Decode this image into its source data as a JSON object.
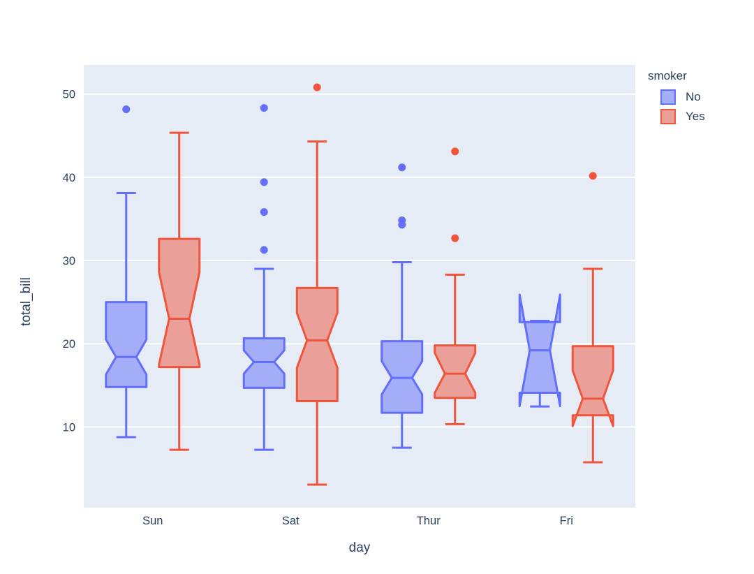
{
  "chart_data": {
    "type": "box",
    "notched": true,
    "title": "",
    "xlabel": "day",
    "ylabel": "total_bill",
    "categories": [
      "Sun",
      "Sat",
      "Thur",
      "Fri"
    ],
    "y_ticks": [
      10,
      20,
      30,
      40,
      50
    ],
    "ylim": [
      0.3,
      53.5
    ],
    "grid": true,
    "legend": {
      "title": "smoker",
      "position": "top-right",
      "entries": [
        {
          "label": "No",
          "color": "#636EFA",
          "fill": "#A4ADF8"
        },
        {
          "label": "Yes",
          "color": "#EF553B",
          "fill": "#EAA098"
        }
      ]
    },
    "series": [
      {
        "name": "No",
        "color": "#636EFA",
        "fill": "#A4ADF8",
        "boxes": [
          {
            "category": "Sun",
            "lower_fence": 8.77,
            "q1": 14.8,
            "median": 18.4,
            "q3": 25.0,
            "upper_fence": 38.1,
            "notch_lower": 16.3,
            "notch_upper": 20.5,
            "outliers": [
              48.17
            ]
          },
          {
            "category": "Sat",
            "lower_fence": 7.25,
            "q1": 14.7,
            "median": 17.8,
            "q3": 20.65,
            "upper_fence": 29.0,
            "notch_lower": 16.4,
            "notch_upper": 19.2,
            "outliers": [
              31.27,
              35.83,
              39.42,
              48.33
            ]
          },
          {
            "category": "Thur",
            "lower_fence": 7.51,
            "q1": 11.7,
            "median": 15.9,
            "q3": 20.3,
            "upper_fence": 29.8,
            "notch_lower": 13.9,
            "notch_upper": 17.9,
            "outliers": [
              34.3,
              34.83,
              41.19
            ]
          },
          {
            "category": "Fri",
            "lower_fence": 12.46,
            "q1": 14.1,
            "median": 19.2,
            "q3": 22.6,
            "upper_fence": 22.75,
            "notch_lower": 12.5,
            "notch_upper": 25.9,
            "outliers": []
          }
        ]
      },
      {
        "name": "Yes",
        "color": "#EF553B",
        "fill": "#EAA098",
        "boxes": [
          {
            "category": "Sun",
            "lower_fence": 7.25,
            "q1": 17.2,
            "median": 23.0,
            "q3": 32.6,
            "upper_fence": 45.35,
            "notch_lower": 17.5,
            "notch_upper": 28.6,
            "outliers": []
          },
          {
            "category": "Sat",
            "lower_fence": 3.07,
            "q1": 13.1,
            "median": 20.4,
            "q3": 26.7,
            "upper_fence": 44.3,
            "notch_lower": 17.1,
            "notch_upper": 23.7,
            "outliers": [
              50.81
            ]
          },
          {
            "category": "Thur",
            "lower_fence": 10.34,
            "q1": 13.5,
            "median": 16.4,
            "q3": 19.8,
            "upper_fence": 28.3,
            "notch_lower": 14.1,
            "notch_upper": 18.9,
            "outliers": [
              32.68,
              43.11
            ]
          },
          {
            "category": "Fri",
            "lower_fence": 5.75,
            "q1": 11.4,
            "median": 13.4,
            "q3": 19.7,
            "upper_fence": 29.0,
            "notch_lower": 10.1,
            "notch_upper": 16.8,
            "outliers": [
              40.17
            ]
          }
        ]
      }
    ],
    "colors": {
      "page_bg": "#FFFFFF",
      "plot_bg": "#E5ECF6",
      "grid": "#FFFFFF",
      "text": "#2A3F5F"
    }
  }
}
